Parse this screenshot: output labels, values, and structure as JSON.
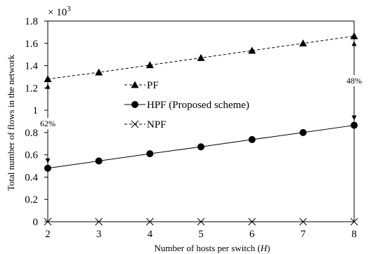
{
  "chart_data": {
    "type": "line",
    "title": "",
    "xlabel_prefix": "Number of hosts per switch (",
    "xlabel_var": "H",
    "xlabel_suffix": ")",
    "ylabel": "Total number of flows in the network",
    "y_multiplier": "× 10",
    "y_multiplier_exp": "3",
    "x": [
      2,
      3,
      4,
      5,
      6,
      7,
      8
    ],
    "xlim": [
      2,
      8
    ],
    "ylim": [
      0,
      1.8
    ],
    "yticks": [
      0,
      0.2,
      0.4,
      0.6,
      0.8,
      1,
      1.2,
      1.4,
      1.6,
      1.8
    ],
    "ytick_labels": [
      "0",
      "0.2",
      "0.4",
      "0.6",
      "0.8",
      "1",
      "1.2",
      "1.4",
      "1.6",
      "1.8"
    ],
    "xtick_labels": [
      "2",
      "3",
      "4",
      "5",
      "6",
      "7",
      "8"
    ],
    "grid": false,
    "legend_position": "center-left",
    "series": [
      {
        "name": "PF",
        "marker": "triangle",
        "line": "dashed",
        "values": [
          1.28,
          1.34,
          1.405,
          1.47,
          1.535,
          1.6,
          1.665
        ]
      },
      {
        "name": "HPF (Proposed scheme)",
        "marker": "circle",
        "line": "solid",
        "values": [
          0.48,
          0.545,
          0.61,
          0.672,
          0.737,
          0.8,
          0.865
        ]
      },
      {
        "name": "NPF",
        "marker": "x",
        "line": "dashed",
        "values": [
          0,
          0,
          0,
          0,
          0,
          0,
          0
        ]
      }
    ],
    "annotations": [
      {
        "text": "62%",
        "x": 2,
        "from": 0.48,
        "to": 1.28
      },
      {
        "text": "48%",
        "x": 8,
        "from": 0.865,
        "to": 1.665
      }
    ]
  }
}
